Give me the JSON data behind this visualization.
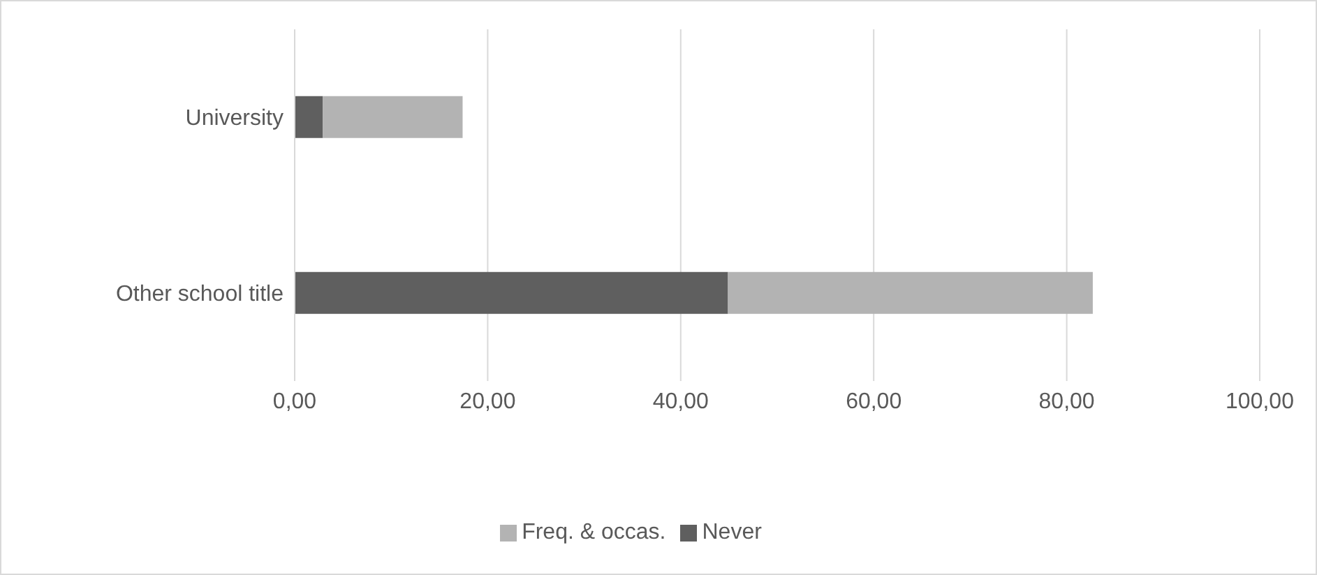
{
  "chart_data": {
    "type": "bar",
    "orientation": "horizontal",
    "stacked": true,
    "categories": [
      "University",
      "Other school title"
    ],
    "series": [
      {
        "name": "Never",
        "color": "#5f5f5f",
        "values": [
          2.9,
          44.9
        ]
      },
      {
        "name": "Freq. & occas.",
        "color": "#b3b3b3",
        "values": [
          14.5,
          37.8
        ]
      }
    ],
    "xlim": [
      0,
      100
    ],
    "xticks": [
      {
        "value": 0,
        "label": "0,00"
      },
      {
        "value": 20,
        "label": "20,00"
      },
      {
        "value": 40,
        "label": "40,00"
      },
      {
        "value": 60,
        "label": "60,00"
      },
      {
        "value": 80,
        "label": "80,00"
      },
      {
        "value": 100,
        "label": "100,00"
      }
    ],
    "grid": "x",
    "legend": "bottom"
  }
}
